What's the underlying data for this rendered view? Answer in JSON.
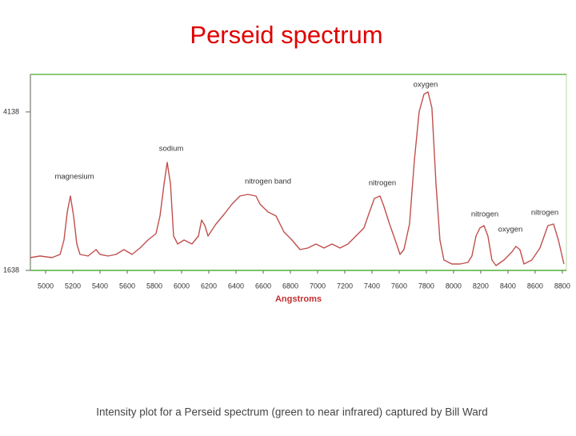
{
  "chart_data": {
    "type": "line",
    "title": "Perseid spectrum",
    "xlabel": "Angstroms",
    "caption": "Intensity plot for a Perseid spectrum (green to near infrared) captured by Bill Ward",
    "xlim": [
      4888,
      8830
    ],
    "ylim": [
      1638,
      4730
    ],
    "xticks": [
      5000,
      5200,
      5400,
      5600,
      5800,
      6000,
      6200,
      6400,
      6600,
      6800,
      7000,
      7200,
      7400,
      7600,
      7800,
      8000,
      8200,
      8400,
      8600,
      8800
    ],
    "yticks": [
      1638,
      4138
    ],
    "annotations": [
      "oxygen",
      "sodium",
      "magnesium",
      "nitrogen band",
      "nitrogen",
      "nitrogen",
      "nitrogen",
      "oxygen"
    ],
    "series": [
      {
        "name": "intensity",
        "color": "#c0504d",
        "x": [
          4888,
          4959,
          5047,
          5106,
          5135,
          5159,
          5182,
          5206,
          5229,
          5253,
          5312,
          5371,
          5400,
          5459,
          5518,
          5576,
          5635,
          5694,
          5753,
          5812,
          5841,
          5871,
          5894,
          5918,
          5941,
          5971,
          6018,
          6076,
          6124,
          6147,
          6171,
          6194,
          6253,
          6312,
          6371,
          6429,
          6488,
          6547,
          6576,
          6635,
          6694,
          6753,
          6812,
          6871,
          6929,
          6988,
          7047,
          7106,
          7165,
          7224,
          7282,
          7341,
          7382,
          7418,
          7459,
          7488,
          7529,
          7571,
          7606,
          7635,
          7676,
          7712,
          7747,
          7782,
          7812,
          7841,
          7871,
          7900,
          7929,
          7988,
          8047,
          8106,
          8135,
          8165,
          8194,
          8224,
          8253,
          8282,
          8312,
          8371,
          8429,
          8459,
          8488,
          8518,
          8576,
          8635,
          8694,
          8735,
          8771,
          8812
        ],
        "values": [
          1840,
          1865,
          1840,
          1890,
          2118,
          2560,
          2812,
          2497,
          2055,
          1890,
          1865,
          1966,
          1890,
          1865,
          1890,
          1966,
          1890,
          1992,
          2118,
          2219,
          2497,
          3002,
          3343,
          3002,
          2181,
          2055,
          2118,
          2055,
          2181,
          2433,
          2345,
          2181,
          2370,
          2522,
          2686,
          2812,
          2837,
          2812,
          2686,
          2560,
          2497,
          2244,
          2118,
          1966,
          1992,
          2055,
          1992,
          2055,
          1992,
          2055,
          2181,
          2307,
          2560,
          2774,
          2812,
          2648,
          2370,
          2118,
          1890,
          1966,
          2370,
          3380,
          4138,
          4416,
          4454,
          4201,
          3002,
          2118,
          1802,
          1739,
          1739,
          1764,
          1865,
          2181,
          2307,
          2345,
          2181,
          1802,
          1714,
          1802,
          1928,
          2017,
          1966,
          1739,
          1802,
          1992,
          2345,
          2370,
          2118,
          1739
        ]
      }
    ]
  }
}
